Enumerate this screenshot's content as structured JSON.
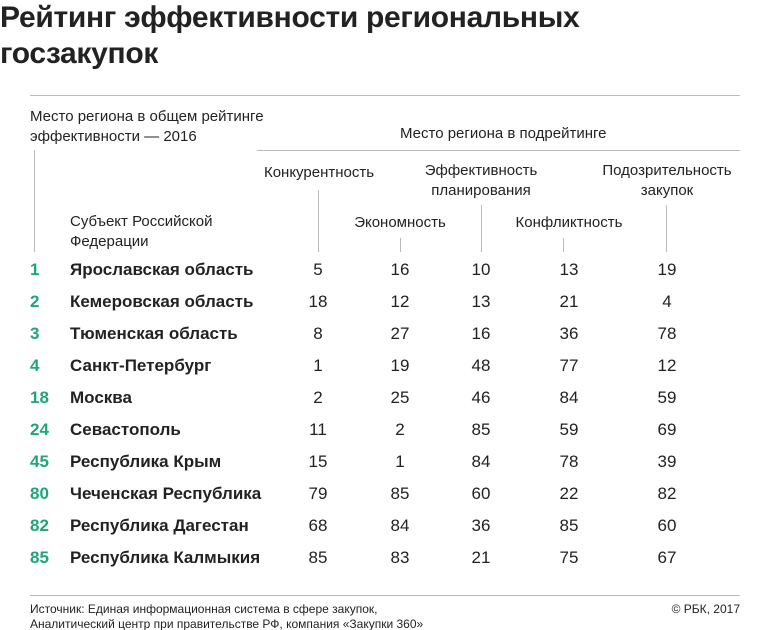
{
  "title": "Рейтинг эффективности региональных госзакупок",
  "headers": {
    "overall": "Место региона в общем рейтинге эффективности — 2016",
    "sub_group": "Место региона в подрейтинге",
    "subject": "Субъект Российской Федерации",
    "columns": [
      "Конкурентность",
      "Экономность",
      "Эффективность планирования",
      "Конфликтность",
      "Подозрительность закупок"
    ]
  },
  "accent_color": "#1ea67a",
  "chart_data": {
    "type": "table",
    "title": "Рейтинг эффективности региональных госзакупок",
    "columns": [
      "Место",
      "Субъект Российской Федерации",
      "Конкурентность",
      "Экономность",
      "Эффективность планирования",
      "Конфликтность",
      "Подозрительность закупок"
    ],
    "rows": [
      {
        "rank": "1",
        "name": "Ярославская область",
        "values": [
          "5",
          "16",
          "10",
          "13",
          "19"
        ]
      },
      {
        "rank": "2",
        "name": "Кемеровская область",
        "values": [
          "18",
          "12",
          "13",
          "21",
          "4"
        ]
      },
      {
        "rank": "3",
        "name": "Тюменская область",
        "values": [
          "8",
          "27",
          "16",
          "36",
          "78"
        ]
      },
      {
        "rank": "4",
        "name": "Санкт-Петербург",
        "values": [
          "1",
          "19",
          "48",
          "77",
          "12"
        ]
      },
      {
        "rank": "18",
        "name": "Москва",
        "values": [
          "2",
          "25",
          "46",
          "84",
          "59"
        ]
      },
      {
        "rank": "24",
        "name": "Севастополь",
        "values": [
          "11",
          "2",
          "85",
          "59",
          "69"
        ]
      },
      {
        "rank": "45",
        "name": "Республика Крым",
        "values": [
          "15",
          "1",
          "84",
          "78",
          "39"
        ]
      },
      {
        "rank": "80",
        "name": "Чеченская Республика",
        "values": [
          "79",
          "85",
          "60",
          "22",
          "82"
        ]
      },
      {
        "rank": "82",
        "name": "Республика Дагестан",
        "values": [
          "68",
          "84",
          "36",
          "85",
          "60"
        ]
      },
      {
        "rank": "85",
        "name": "Республика Калмыкия",
        "values": [
          "85",
          "83",
          "21",
          "75",
          "67"
        ]
      }
    ]
  },
  "footer": {
    "source_line1": "Источник: Единая информационная система в сфере закупок,",
    "source_line2": "Аналитический центр при правительстве РФ, компания «Закупки 360»",
    "copyright": "© РБК, 2017"
  }
}
